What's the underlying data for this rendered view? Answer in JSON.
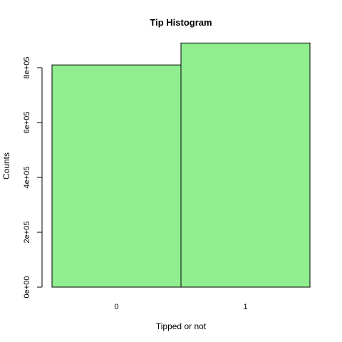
{
  "chart_data": {
    "type": "bar",
    "title": "Tip Histogram",
    "xlabel": "Tipped or not",
    "ylabel": "Counts",
    "categories": [
      "0",
      "1"
    ],
    "values": [
      810000,
      890000
    ],
    "bar_color": "#90EE90",
    "ylim": [
      0,
      900000
    ],
    "yticks": [
      0,
      200000,
      400000,
      600000,
      800000
    ],
    "ytick_labels": [
      "0e+00",
      "2e+05",
      "4e+05",
      "6e+05",
      "8e+05"
    ],
    "grid": false,
    "legend": "none"
  }
}
